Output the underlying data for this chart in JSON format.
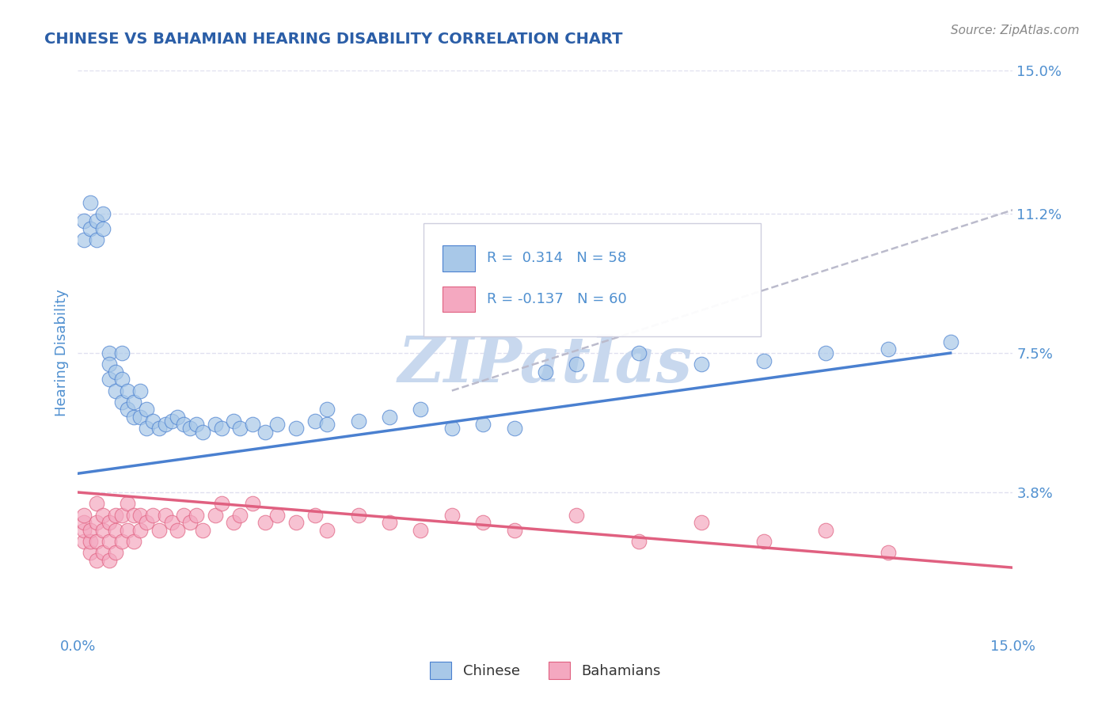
{
  "title": "CHINESE VS BAHAMIAN HEARING DISABILITY CORRELATION CHART",
  "source_text": "Source: ZipAtlas.com",
  "ylabel": "Hearing Disability",
  "xlim": [
    0.0,
    0.15
  ],
  "ylim": [
    0.0,
    0.15
  ],
  "xtick_labels": [
    "0.0%",
    "15.0%"
  ],
  "ytick_labels": [
    "3.8%",
    "7.5%",
    "11.2%",
    "15.0%"
  ],
  "ytick_vals": [
    0.038,
    0.075,
    0.112,
    0.15
  ],
  "r_chinese": 0.314,
  "n_chinese": 58,
  "r_bahamian": -0.137,
  "n_bahamian": 60,
  "color_chinese": "#A8C8E8",
  "color_bahamian": "#F4A8C0",
  "color_line_chinese": "#4A80D0",
  "color_line_bahamian": "#E06080",
  "color_trend_dashed": "#BBBBCC",
  "title_color": "#2B5EA7",
  "axis_color": "#5090D0",
  "watermark_color": "#C8D8EE",
  "gridline_color": "#DDDDEE",
  "background_color": "#FFFFFF",
  "chinese_x": [
    0.001,
    0.001,
    0.002,
    0.002,
    0.003,
    0.003,
    0.004,
    0.004,
    0.005,
    0.005,
    0.005,
    0.006,
    0.006,
    0.007,
    0.007,
    0.007,
    0.008,
    0.008,
    0.009,
    0.009,
    0.01,
    0.01,
    0.011,
    0.011,
    0.012,
    0.013,
    0.014,
    0.015,
    0.016,
    0.017,
    0.018,
    0.019,
    0.02,
    0.022,
    0.023,
    0.025,
    0.026,
    0.028,
    0.03,
    0.032,
    0.035,
    0.038,
    0.04,
    0.04,
    0.045,
    0.05,
    0.055,
    0.06,
    0.065,
    0.07,
    0.075,
    0.08,
    0.09,
    0.1,
    0.11,
    0.12,
    0.13,
    0.14
  ],
  "chinese_y": [
    0.11,
    0.105,
    0.115,
    0.108,
    0.105,
    0.11,
    0.108,
    0.112,
    0.075,
    0.068,
    0.072,
    0.065,
    0.07,
    0.062,
    0.068,
    0.075,
    0.06,
    0.065,
    0.058,
    0.062,
    0.058,
    0.065,
    0.055,
    0.06,
    0.057,
    0.055,
    0.056,
    0.057,
    0.058,
    0.056,
    0.055,
    0.056,
    0.054,
    0.056,
    0.055,
    0.057,
    0.055,
    0.056,
    0.054,
    0.056,
    0.055,
    0.057,
    0.056,
    0.06,
    0.057,
    0.058,
    0.06,
    0.055,
    0.056,
    0.055,
    0.07,
    0.072,
    0.075,
    0.072,
    0.073,
    0.075,
    0.076,
    0.078
  ],
  "bahamian_x": [
    0.001,
    0.001,
    0.001,
    0.001,
    0.002,
    0.002,
    0.002,
    0.003,
    0.003,
    0.003,
    0.003,
    0.004,
    0.004,
    0.004,
    0.005,
    0.005,
    0.005,
    0.006,
    0.006,
    0.006,
    0.007,
    0.007,
    0.008,
    0.008,
    0.009,
    0.009,
    0.01,
    0.01,
    0.011,
    0.012,
    0.013,
    0.014,
    0.015,
    0.016,
    0.017,
    0.018,
    0.019,
    0.02,
    0.022,
    0.023,
    0.025,
    0.026,
    0.028,
    0.03,
    0.032,
    0.035,
    0.038,
    0.04,
    0.045,
    0.05,
    0.055,
    0.06,
    0.065,
    0.07,
    0.08,
    0.09,
    0.1,
    0.11,
    0.12,
    0.13
  ],
  "bahamian_y": [
    0.025,
    0.028,
    0.03,
    0.032,
    0.022,
    0.025,
    0.028,
    0.02,
    0.025,
    0.03,
    0.035,
    0.022,
    0.028,
    0.032,
    0.02,
    0.025,
    0.03,
    0.022,
    0.028,
    0.032,
    0.025,
    0.032,
    0.028,
    0.035,
    0.025,
    0.032,
    0.028,
    0.032,
    0.03,
    0.032,
    0.028,
    0.032,
    0.03,
    0.028,
    0.032,
    0.03,
    0.032,
    0.028,
    0.032,
    0.035,
    0.03,
    0.032,
    0.035,
    0.03,
    0.032,
    0.03,
    0.032,
    0.028,
    0.032,
    0.03,
    0.028,
    0.032,
    0.03,
    0.028,
    0.032,
    0.025,
    0.03,
    0.025,
    0.028,
    0.022
  ],
  "chinese_line_x0": 0.0,
  "chinese_line_x1": 0.14,
  "chinese_line_y0": 0.043,
  "chinese_line_y1": 0.075,
  "bahamian_line_x0": 0.0,
  "bahamian_line_x1": 0.15,
  "bahamian_line_y0": 0.038,
  "bahamian_line_y1": 0.018,
  "dashed_line_x0": 0.06,
  "dashed_line_x1": 0.15,
  "dashed_line_y0": 0.065,
  "dashed_line_y1": 0.113
}
